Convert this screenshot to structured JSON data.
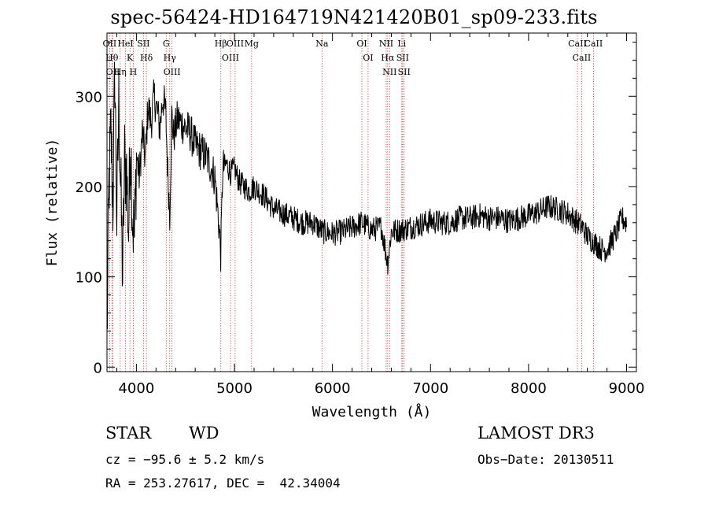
{
  "chart_data": {
    "type": "line",
    "title": "spec-56424-HD164719N421420B01_sp09-233.fits",
    "xlabel": "Wavelength (Å)",
    "ylabel": "Flux (relative)",
    "xlim": [
      3700,
      9100
    ],
    "ylim": [
      -5,
      370
    ],
    "xticks": [
      4000,
      5000,
      6000,
      7000,
      8000,
      9000
    ],
    "yticks": [
      0,
      100,
      200,
      300
    ],
    "series": [
      {
        "name": "flux",
        "x": [
          3700,
          3720,
          3740,
          3760,
          3780,
          3800,
          3820,
          3840,
          3860,
          3880,
          3900,
          3920,
          3940,
          3960,
          3980,
          4000,
          4030,
          4060,
          4090,
          4120,
          4150,
          4180,
          4210,
          4240,
          4270,
          4300,
          4320,
          4340,
          4360,
          4380,
          4420,
          4460,
          4500,
          4550,
          4600,
          4650,
          4700,
          4750,
          4800,
          4840,
          4861,
          4880,
          4920,
          4960,
          5000,
          5050,
          5100,
          5150,
          5200,
          5300,
          5400,
          5500,
          5600,
          5700,
          5800,
          5900,
          6000,
          6100,
          6200,
          6300,
          6400,
          6500,
          6563,
          6600,
          6700,
          6800,
          6900,
          7000,
          7100,
          7200,
          7300,
          7400,
          7500,
          7600,
          7700,
          7800,
          7900,
          8000,
          8100,
          8200,
          8300,
          8400,
          8500,
          8550,
          8600,
          8650,
          8700,
          8750,
          8800,
          8850,
          8900,
          8950,
          9000
        ],
        "y": [
          30,
          200,
          260,
          180,
          330,
          160,
          290,
          200,
          100,
          230,
          215,
          150,
          260,
          170,
          140,
          235,
          210,
          260,
          230,
          290,
          270,
          300,
          285,
          265,
          300,
          280,
          215,
          170,
          280,
          255,
          275,
          270,
          265,
          260,
          245,
          240,
          235,
          225,
          210,
          160,
          125,
          220,
          225,
          215,
          220,
          205,
          200,
          195,
          200,
          190,
          175,
          170,
          165,
          160,
          160,
          150,
          148,
          150,
          155,
          160,
          152,
          155,
          115,
          150,
          152,
          155,
          158,
          162,
          160,
          160,
          165,
          165,
          168,
          165,
          165,
          162,
          165,
          168,
          172,
          178,
          175,
          170,
          160,
          155,
          145,
          140,
          135,
          130,
          130,
          140,
          150,
          165,
          160
        ]
      }
    ],
    "line_markers": [
      {
        "name": "OII",
        "wavelength": 3727
      },
      {
        "name": "Hθ",
        "wavelength": 3750
      },
      {
        "name": "OII",
        "wavelength": 3760
      },
      {
        "name": "Hη",
        "wavelength": 3835
      },
      {
        "name": "HeI",
        "wavelength": 3889
      },
      {
        "name": "K",
        "wavelength": 3934
      },
      {
        "name": "H",
        "wavelength": 3968
      },
      {
        "name": "SII",
        "wavelength": 4072
      },
      {
        "name": "Hδ",
        "wavelength": 4102
      },
      {
        "name": "G",
        "wavelength": 4304
      },
      {
        "name": "Hγ",
        "wavelength": 4340
      },
      {
        "name": "OIII",
        "wavelength": 4363
      },
      {
        "name": "Hβ",
        "wavelength": 4861
      },
      {
        "name": "OIII",
        "wavelength": 4959
      },
      {
        "name": "OIII",
        "wavelength": 5007
      },
      {
        "name": "Mg",
        "wavelength": 5175
      },
      {
        "name": "Na",
        "wavelength": 5893
      },
      {
        "name": "OI",
        "wavelength": 6300
      },
      {
        "name": "OI",
        "wavelength": 6363
      },
      {
        "name": "NII",
        "wavelength": 6548
      },
      {
        "name": "Hα",
        "wavelength": 6563
      },
      {
        "name": "NII",
        "wavelength": 6583
      },
      {
        "name": "Li",
        "wavelength": 6707
      },
      {
        "name": "SII",
        "wavelength": 6716
      },
      {
        "name": "SII",
        "wavelength": 6731
      },
      {
        "name": "CaII",
        "wavelength": 8498
      },
      {
        "name": "CaII",
        "wavelength": 8542
      },
      {
        "name": "CaII",
        "wavelength": 8662
      }
    ]
  },
  "info": {
    "object_class": "STAR",
    "subclass": "WD",
    "survey": "LAMOST DR3",
    "cz_line": "cz = −95.6 ± 5.2 km/s",
    "obs_date": "Obs−Date: 20130511",
    "coords": "RA = 253.27617, DEC =  42.34004"
  },
  "colors": {
    "spectrum": "#000000",
    "marker_line": "#b03030",
    "axes": "#000000",
    "background": "#ffffff"
  }
}
